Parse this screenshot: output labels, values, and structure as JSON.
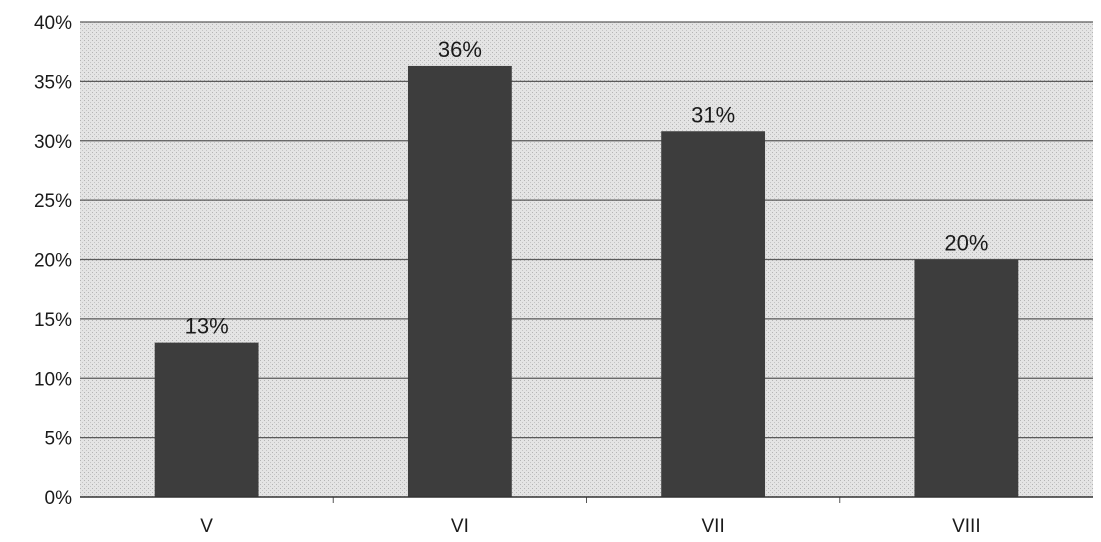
{
  "chart_data": {
    "type": "bar",
    "title": "",
    "xlabel": "",
    "ylabel": "",
    "categories": [
      "V",
      "VI",
      "VII",
      "VIII"
    ],
    "values": [
      13,
      36.3,
      30.8,
      20
    ],
    "data_labels": [
      "13%",
      "36%",
      "31%",
      "20%"
    ],
    "ylim": [
      0,
      40
    ],
    "yticks": [
      0,
      5,
      10,
      15,
      20,
      25,
      30,
      35,
      40
    ],
    "ytick_labels": [
      "0%",
      "5%",
      "10%",
      "15%",
      "20%",
      "25%",
      "30%",
      "35%",
      "40%"
    ],
    "grid": true,
    "legend": "none",
    "colors": {
      "bar": "#3d3d3d",
      "plot_background": "#dcdcdc",
      "gridline": "#5a5a5a",
      "text": "#1a1a1a"
    }
  }
}
